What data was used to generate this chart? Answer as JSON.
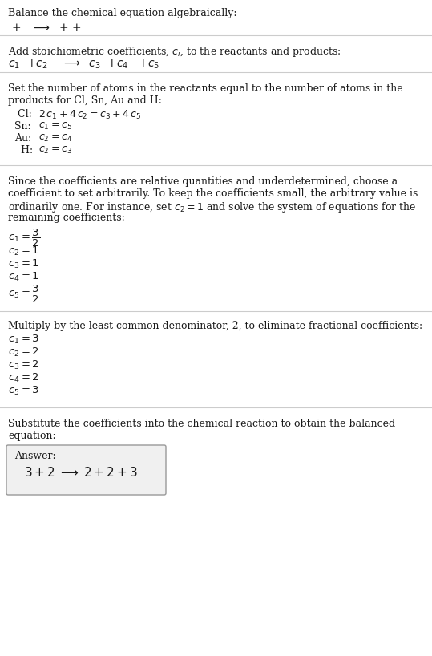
{
  "bg_color": "#ffffff",
  "text_color": "#1a1a1a",
  "separator_color": "#cccccc",
  "title": "Balance the chemical equation algebraically:",
  "eq1": "+ → + +",
  "s1_title": "Add stoichiometric coefficients, $c_i$, to the reactants and products:",
  "s1_eq": "$c_1$  +$c_2$    ⟶  $c_3$  +$c_4$   +$c_5$",
  "s2_line1": "Set the number of atoms in the reactants equal to the number of atoms in the",
  "s2_line2": "products for Cl, Sn, Au and H:",
  "atom_lines": [
    " Cl:   $2\\,c_1 + 4\\,c_2 = c_3 + 4\\,c_5$",
    "Sn:   $c_1 = c_5$",
    "Au:   $c_2 = c_4$",
    "  H:   $c_2 = c_3$"
  ],
  "s3_lines": [
    "Since the coefficients are relative quantities and underdetermined, choose a",
    "coefficient to set arbitrarily. To keep the coefficients small, the arbitrary value is",
    "ordinarily one. For instance, set $c_2 = 1$ and solve the system of equations for the",
    "remaining coefficients:"
  ],
  "frac_items": [
    [
      "$c_1 = \\dfrac{3}{2}$",
      true
    ],
    [
      "$c_2 = 1$",
      false
    ],
    [
      "$c_3 = 1$",
      false
    ],
    [
      "$c_4 = 1$",
      false
    ],
    [
      "$c_5 = \\dfrac{3}{2}$",
      true
    ]
  ],
  "s4_title": "Multiply by the least common denominator, 2, to eliminate fractional coefficients:",
  "int_items": [
    "$c_1 = 3$",
    "$c_2 = 2$",
    "$c_3 = 2$",
    "$c_4 = 2$",
    "$c_5 = 3$"
  ],
  "s5_line1": "Substitute the coefficients into the chemical reaction to obtain the balanced",
  "s5_line2": "equation:",
  "answer_label": "Answer:",
  "answer_eq": "$3 + 2 \\;\\longrightarrow\\; 2 + 2 + 3$",
  "answer_box_facecolor": "#f0f0f0",
  "answer_box_edgecolor": "#999999",
  "font_size": 9,
  "mono_font": "DejaVu Sans Mono"
}
